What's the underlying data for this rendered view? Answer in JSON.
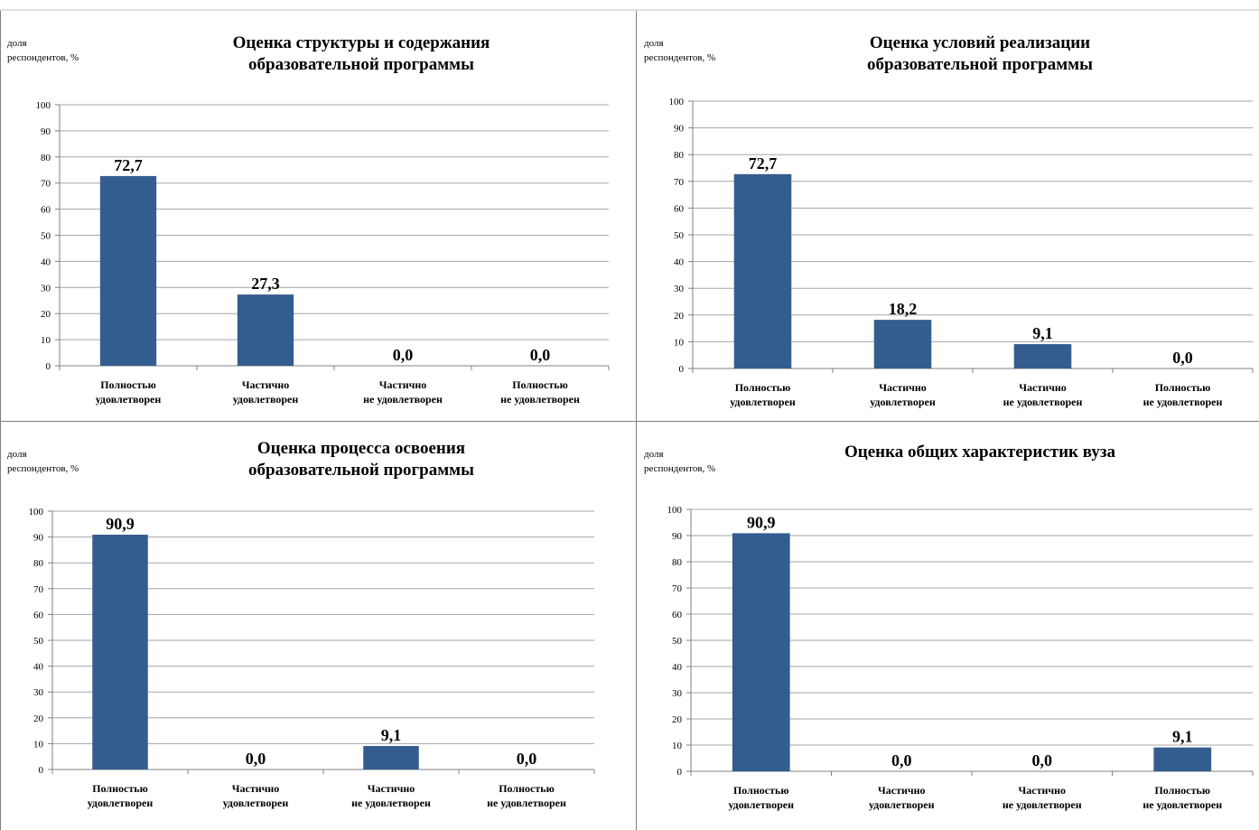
{
  "bar_color": "#345d8f",
  "grid_color": "#a6a6a6",
  "chart_data": [
    {
      "type": "bar",
      "title": "Оценка структуры и содержания образовательной программы",
      "title_lines": [
        "Оценка структуры и содержания",
        "образовательной программы"
      ],
      "ylabel_lines": [
        "доля",
        "респондентов, %"
      ],
      "categories": [
        [
          "Полностью",
          "удовлетворен"
        ],
        [
          "Частично",
          "удовлетворен"
        ],
        [
          "Частично",
          "не удовлетворен"
        ],
        [
          "Полностью",
          "не удовлетворен"
        ]
      ],
      "values": [
        72.7,
        27.3,
        0.0,
        0.0
      ],
      "data_labels": [
        "72,7",
        "27,3",
        "0,0",
        "0,0"
      ],
      "yticks": [
        "0",
        "10",
        "20",
        "30",
        "40",
        "50",
        "60",
        "70",
        "80",
        "90",
        "100"
      ],
      "ylim": [
        0,
        100
      ],
      "grid": true
    },
    {
      "type": "bar",
      "title": "Оценка условий реализации образовательной программы",
      "title_lines": [
        "Оценка условий реализации",
        "образовательной программы"
      ],
      "ylabel_lines": [
        "доля",
        "респондентов, %"
      ],
      "categories": [
        [
          "Полностью",
          "удовлетворен"
        ],
        [
          "Частично",
          "удовлетворен"
        ],
        [
          "Частично",
          "не удовлетворен"
        ],
        [
          "Полностью",
          "не удовлетворен"
        ]
      ],
      "values": [
        72.7,
        18.2,
        9.1,
        0.0
      ],
      "data_labels": [
        "72,7",
        "18,2",
        "9,1",
        "0,0"
      ],
      "yticks": [
        "0",
        "10",
        "20",
        "30",
        "40",
        "50",
        "60",
        "70",
        "80",
        "90",
        "100"
      ],
      "ylim": [
        0,
        100
      ],
      "grid": true
    },
    {
      "type": "bar",
      "title": "Оценка процесса освоения образовательной программы",
      "title_lines": [
        "Оценка процесса освоения",
        "образовательной программы"
      ],
      "ylabel_lines": [
        "доля",
        "респондентов, %"
      ],
      "categories": [
        [
          "Полностью",
          "удовлетворен"
        ],
        [
          "Частично",
          "удовлетворен"
        ],
        [
          "Частично",
          "не удовлетворен"
        ],
        [
          "Полностью",
          "не удовлетворен"
        ]
      ],
      "values": [
        90.9,
        0.0,
        9.1,
        0.0
      ],
      "data_labels": [
        "90,9",
        "0,0",
        "9,1",
        "0,0"
      ],
      "yticks": [
        "0",
        "10",
        "20",
        "30",
        "40",
        "50",
        "60",
        "70",
        "80",
        "90",
        "100"
      ],
      "ylim": [
        0,
        100
      ],
      "grid": true
    },
    {
      "type": "bar",
      "title": "Оценка общих характеристик вуза",
      "title_lines": [
        "Оценка общих характеристик вуза"
      ],
      "ylabel_lines": [
        "доля",
        "респондентов, %"
      ],
      "categories": [
        [
          "Полностью",
          "удовлетворен"
        ],
        [
          "Частично",
          "удовлетворен"
        ],
        [
          "Частично",
          "не удовлетворен"
        ],
        [
          "Полностью",
          "не удовлетворен"
        ]
      ],
      "values": [
        90.9,
        0.0,
        0.0,
        9.1
      ],
      "data_labels": [
        "90,9",
        "0,0",
        "0,0",
        "9,1"
      ],
      "yticks": [
        "0",
        "10",
        "20",
        "30",
        "40",
        "50",
        "60",
        "70",
        "80",
        "90",
        "100"
      ],
      "ylim": [
        0,
        100
      ],
      "grid": true
    }
  ]
}
